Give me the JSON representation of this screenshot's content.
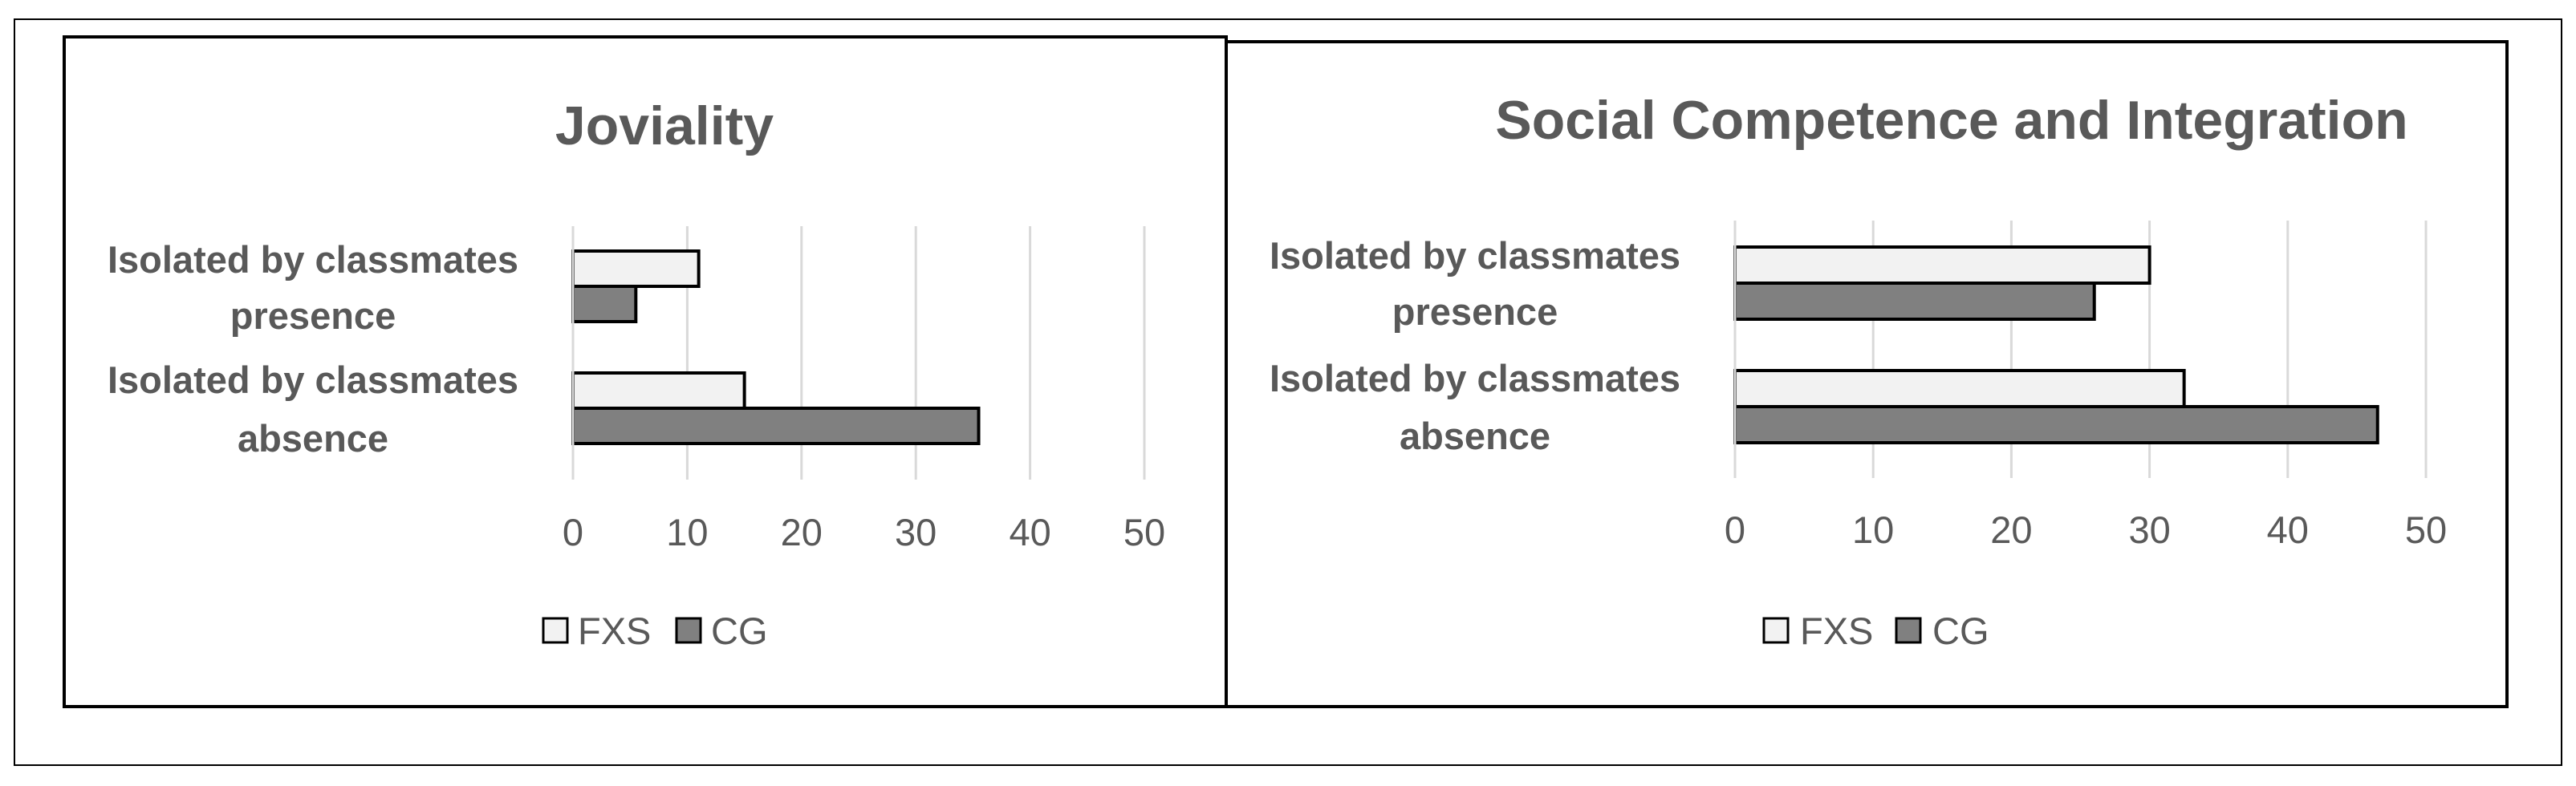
{
  "chart_data": [
    {
      "type": "bar",
      "orientation": "horizontal",
      "title": "Joviality",
      "categories": [
        "Isolated by classmates presence",
        "Isolated by classmates absence"
      ],
      "category_lines": [
        [
          "Isolated by classmates",
          "presence"
        ],
        [
          "Isolated by classmates",
          "absence"
        ]
      ],
      "series": [
        {
          "name": "FXS",
          "values": [
            11,
            15
          ],
          "color": "#f2f2f2"
        },
        {
          "name": "CG",
          "values": [
            5.5,
            35.5
          ],
          "color": "#808080"
        }
      ],
      "xlim": [
        0,
        50
      ],
      "xticks": [
        0,
        10,
        20,
        30,
        40,
        50
      ],
      "grid": true,
      "legend": "bottom"
    },
    {
      "type": "bar",
      "orientation": "horizontal",
      "title": "Social Competence and Integration",
      "categories": [
        "Isolated by classmates presence",
        "Isolated by classmates absence"
      ],
      "category_lines": [
        [
          "Isolated by classmates",
          "presence"
        ],
        [
          "Isolated by classmates",
          "absence"
        ]
      ],
      "series": [
        {
          "name": "FXS",
          "values": [
            30,
            32.5
          ],
          "color": "#f2f2f2"
        },
        {
          "name": "CG",
          "values": [
            26,
            46.5
          ],
          "color": "#808080"
        }
      ],
      "xlim": [
        0,
        50
      ],
      "xticks": [
        0,
        10,
        20,
        30,
        40,
        50
      ],
      "grid": true,
      "legend": "bottom"
    }
  ]
}
